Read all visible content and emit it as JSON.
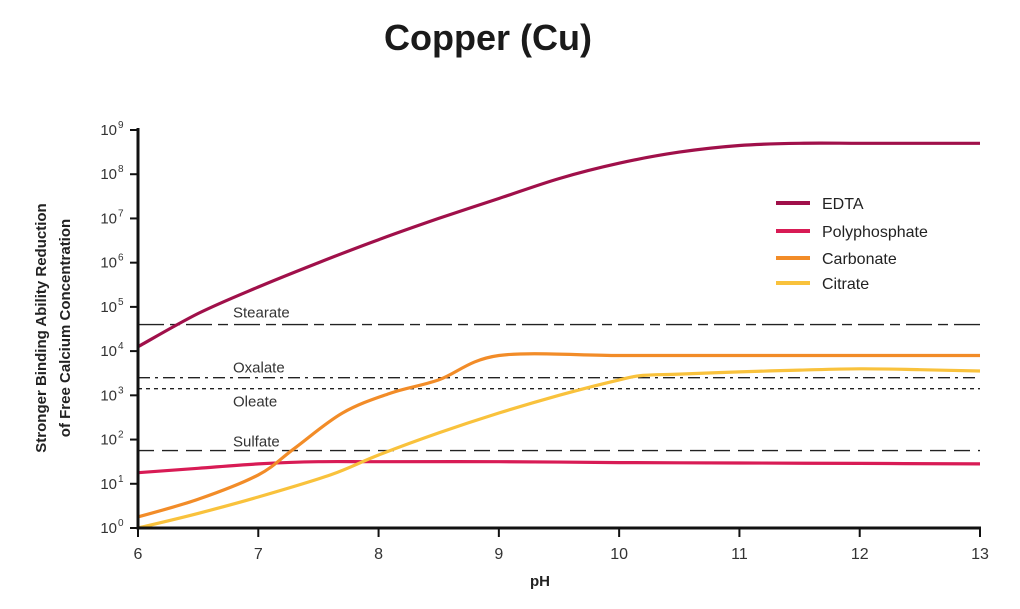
{
  "chart_data": {
    "type": "line",
    "title": "Copper (Cu)",
    "xlabel": "pH",
    "ylabel_line1": "Stronger Binding Ability Reduction",
    "ylabel_line2": "of Free Calcium Concentration",
    "xlim": [
      6,
      13
    ],
    "ylim_log10": [
      0,
      9
    ],
    "y_scale": "log10",
    "x_ticks": [
      6,
      7,
      8,
      9,
      10,
      11,
      12,
      13
    ],
    "y_ticks": [
      {
        "base": "10",
        "exp": "0"
      },
      {
        "base": "10",
        "exp": "1"
      },
      {
        "base": "10",
        "exp": "2"
      },
      {
        "base": "10",
        "exp": "3"
      },
      {
        "base": "10",
        "exp": "4"
      },
      {
        "base": "10",
        "exp": "5"
      },
      {
        "base": "10",
        "exp": "6"
      },
      {
        "base": "10",
        "exp": "7"
      },
      {
        "base": "10",
        "exp": "8"
      },
      {
        "base": "10",
        "exp": "9"
      }
    ],
    "legend_position": "upper-right",
    "series": [
      {
        "name": "EDTA",
        "color": "#a0104a",
        "x": [
          6,
          6.5,
          7,
          7.5,
          8,
          8.5,
          9,
          9.5,
          10,
          10.5,
          11,
          11.5,
          12,
          12.5,
          13
        ],
        "log10_y": [
          4.1,
          4.85,
          5.45,
          6.0,
          6.52,
          7.0,
          7.45,
          7.9,
          8.25,
          8.5,
          8.65,
          8.7,
          8.7,
          8.7,
          8.7
        ]
      },
      {
        "name": "Polyphosphate",
        "color": "#d81b55",
        "x": [
          6,
          6.5,
          7,
          7.5,
          8,
          9,
          10,
          11,
          12,
          13
        ],
        "log10_y": [
          1.25,
          1.35,
          1.45,
          1.5,
          1.5,
          1.5,
          1.48,
          1.47,
          1.46,
          1.45
        ]
      },
      {
        "name": "Carbonate",
        "color": "#f28c28",
        "x": [
          6,
          6.5,
          7,
          7.3,
          7.7,
          8.1,
          8.5,
          9,
          10,
          11,
          12,
          13
        ],
        "log10_y": [
          0.25,
          0.65,
          1.2,
          1.8,
          2.6,
          3.05,
          3.35,
          3.9,
          3.9,
          3.9,
          3.9,
          3.9
        ]
      },
      {
        "name": "Citrate",
        "color": "#f9c23c",
        "x": [
          6,
          6.5,
          7,
          7.6,
          8,
          8.5,
          9,
          9.5,
          10,
          10.2,
          10.5,
          11,
          11.5,
          12,
          12.5,
          13
        ],
        "log10_y": [
          0.0,
          0.33,
          0.7,
          1.2,
          1.65,
          2.15,
          2.6,
          3.0,
          3.35,
          3.45,
          3.48,
          3.53,
          3.57,
          3.6,
          3.58,
          3.55
        ]
      }
    ],
    "reference_lines": [
      {
        "label": "Stearate",
        "log10_y": 4.6,
        "dash": "long-short"
      },
      {
        "label": "Oxalate",
        "log10_y": 3.4,
        "dash": "dash-dot"
      },
      {
        "label": "Oleate",
        "log10_y": 3.15,
        "dash": "dotted"
      },
      {
        "label": "Sulfate",
        "log10_y": 1.75,
        "dash": "long"
      }
    ]
  }
}
